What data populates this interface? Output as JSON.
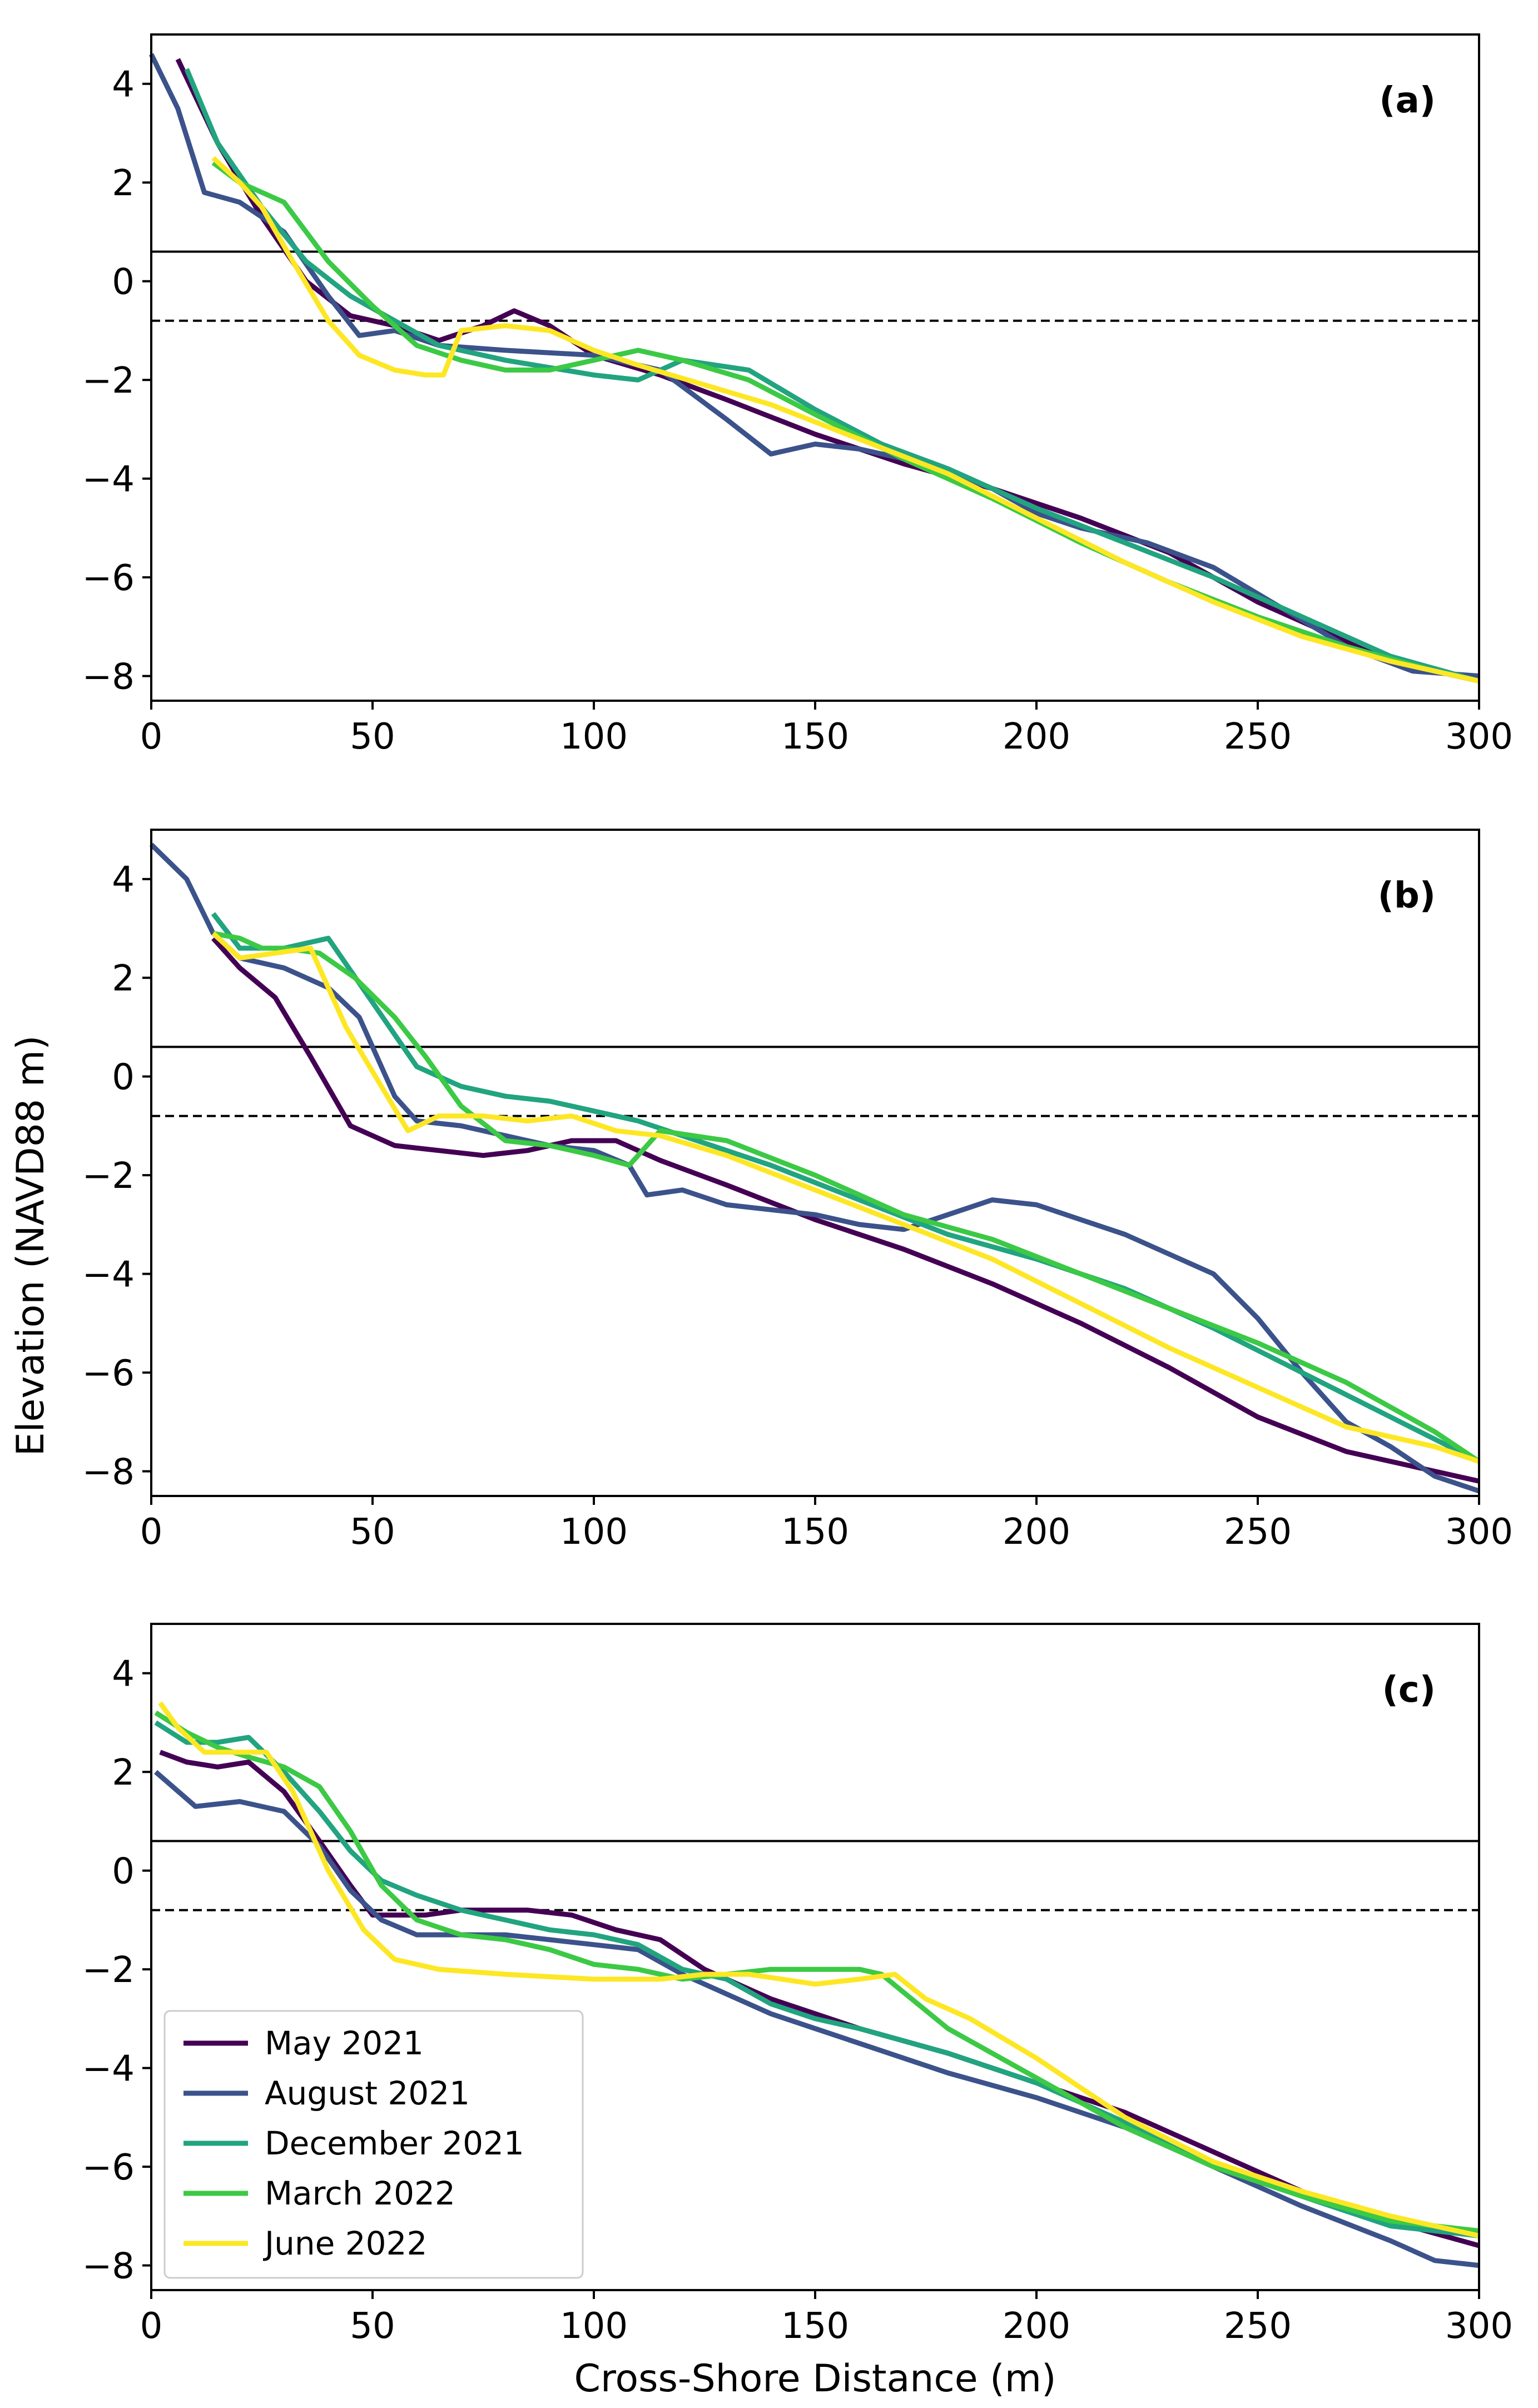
{
  "figure": {
    "ylabel": "Elevation (NAVD88 m)",
    "xlabel": "Cross-Shore Distance (m)"
  },
  "legend": {
    "placement": "lower-left of panel (c)",
    "entries": [
      {
        "label": "May 2021",
        "color": "#440154"
      },
      {
        "label": "August 2021",
        "color": "#3b528b"
      },
      {
        "label": "December 2021",
        "color": "#21a47f"
      },
      {
        "label": "March 2022",
        "color": "#3cc945"
      },
      {
        "label": "June 2022",
        "color": "#fde725"
      }
    ]
  },
  "chart_data": [
    {
      "type": "line",
      "panel_label": "(a)",
      "xlim": [
        0,
        300
      ],
      "ylim": [
        -8.5,
        5
      ],
      "xticks": [
        0,
        50,
        100,
        150,
        200,
        250,
        300
      ],
      "yticks": [
        4,
        2,
        0,
        -2,
        -4,
        -6,
        -8
      ],
      "reference_lines": [
        {
          "y": 0.6,
          "style": "solid"
        },
        {
          "y": -0.8,
          "style": "dashed"
        }
      ],
      "series": [
        {
          "name": "May 2021",
          "color": "#440154",
          "x": [
            6,
            15,
            25,
            35,
            45,
            55,
            65,
            75,
            82,
            90,
            100,
            115,
            130,
            150,
            170,
            190,
            210,
            230,
            250,
            270,
            290,
            300
          ],
          "y": [
            4.5,
            2.8,
            1.3,
            0.0,
            -0.7,
            -0.9,
            -1.2,
            -0.9,
            -0.6,
            -0.9,
            -1.5,
            -1.9,
            -2.4,
            -3.1,
            -3.7,
            -4.2,
            -4.8,
            -5.5,
            -6.5,
            -7.3,
            -7.9,
            -8.1
          ]
        },
        {
          "name": "August 2021",
          "color": "#3b528b",
          "x": [
            0,
            6,
            12,
            20,
            30,
            40,
            47,
            55,
            65,
            80,
            100,
            115,
            130,
            140,
            150,
            160,
            175,
            190,
            200,
            210,
            225,
            240,
            255,
            270,
            285,
            300
          ],
          "y": [
            4.6,
            3.5,
            1.8,
            1.6,
            1.0,
            -0.3,
            -1.1,
            -1.0,
            -1.3,
            -1.4,
            -1.5,
            -1.8,
            -2.8,
            -3.5,
            -3.3,
            -3.4,
            -3.7,
            -4.2,
            -4.7,
            -5.0,
            -5.3,
            -5.8,
            -6.6,
            -7.4,
            -7.9,
            -8.0
          ]
        },
        {
          "name": "December 2021",
          "color": "#21a47f",
          "x": [
            8,
            15,
            25,
            35,
            45,
            55,
            65,
            80,
            100,
            110,
            120,
            135,
            150,
            165,
            180,
            200,
            220,
            240,
            260,
            280,
            300
          ],
          "y": [
            4.3,
            2.8,
            1.5,
            0.4,
            -0.3,
            -0.8,
            -1.3,
            -1.6,
            -1.9,
            -2.0,
            -1.6,
            -1.8,
            -2.6,
            -3.3,
            -3.8,
            -4.6,
            -5.3,
            -6.0,
            -6.8,
            -7.6,
            -8.1
          ]
        },
        {
          "name": "March 2022",
          "color": "#3cc945",
          "x": [
            14,
            20,
            30,
            40,
            50,
            60,
            70,
            80,
            90,
            100,
            110,
            120,
            135,
            150,
            170,
            190,
            210,
            230,
            250,
            270,
            290,
            300
          ],
          "y": [
            2.4,
            2.0,
            1.6,
            0.4,
            -0.5,
            -1.3,
            -1.6,
            -1.8,
            -1.8,
            -1.6,
            -1.4,
            -1.6,
            -2.0,
            -2.7,
            -3.6,
            -4.4,
            -5.3,
            -6.1,
            -6.8,
            -7.4,
            -7.9,
            -8.1
          ]
        },
        {
          "name": "June 2022",
          "color": "#fde725",
          "x": [
            14,
            20,
            25,
            32,
            40,
            47,
            55,
            62,
            66,
            70,
            80,
            90,
            100,
            110,
            125,
            140,
            160,
            180,
            200,
            220,
            240,
            260,
            280,
            300
          ],
          "y": [
            2.5,
            2.0,
            1.5,
            0.4,
            -0.8,
            -1.5,
            -1.8,
            -1.9,
            -1.9,
            -1.0,
            -0.9,
            -1.0,
            -1.4,
            -1.7,
            -2.1,
            -2.5,
            -3.2,
            -3.9,
            -4.8,
            -5.7,
            -6.5,
            -7.2,
            -7.7,
            -8.1
          ]
        }
      ]
    },
    {
      "type": "line",
      "panel_label": "(b)",
      "xlim": [
        0,
        300
      ],
      "ylim": [
        -8.5,
        5
      ],
      "xticks": [
        0,
        50,
        100,
        150,
        200,
        250,
        300
      ],
      "yticks": [
        4,
        2,
        0,
        -2,
        -4,
        -6,
        -8
      ],
      "reference_lines": [
        {
          "y": 0.6,
          "style": "solid"
        },
        {
          "y": -0.8,
          "style": "dashed"
        }
      ],
      "series": [
        {
          "name": "May 2021",
          "color": "#440154",
          "x": [
            14,
            20,
            28,
            36,
            45,
            55,
            65,
            75,
            85,
            95,
            105,
            115,
            130,
            150,
            170,
            190,
            210,
            230,
            250,
            270,
            290,
            300
          ],
          "y": [
            2.8,
            2.2,
            1.6,
            0.4,
            -1.0,
            -1.4,
            -1.5,
            -1.6,
            -1.5,
            -1.3,
            -1.3,
            -1.7,
            -2.2,
            -2.9,
            -3.5,
            -4.2,
            -5.0,
            -5.9,
            -6.9,
            -7.6,
            -8.0,
            -8.2
          ]
        },
        {
          "name": "August 2021",
          "color": "#3b528b",
          "x": [
            0,
            8,
            14,
            20,
            30,
            40,
            47,
            55,
            60,
            70,
            80,
            90,
            100,
            108,
            112,
            120,
            130,
            140,
            150,
            160,
            170,
            180,
            190,
            200,
            210,
            220,
            230,
            240,
            250,
            260,
            270,
            280,
            290,
            300
          ],
          "y": [
            4.7,
            4.0,
            2.9,
            2.4,
            2.2,
            1.8,
            1.2,
            -0.4,
            -0.9,
            -1.0,
            -1.2,
            -1.4,
            -1.5,
            -1.8,
            -2.4,
            -2.3,
            -2.6,
            -2.7,
            -2.8,
            -3.0,
            -3.1,
            -2.8,
            -2.5,
            -2.6,
            -2.9,
            -3.2,
            -3.6,
            -4.0,
            -4.9,
            -6.0,
            -7.0,
            -7.5,
            -8.1,
            -8.4
          ]
        },
        {
          "name": "December 2021",
          "color": "#21a47f",
          "x": [
            14,
            20,
            30,
            40,
            50,
            60,
            70,
            80,
            90,
            100,
            110,
            120,
            140,
            160,
            180,
            200,
            220,
            240,
            260,
            280,
            300
          ],
          "y": [
            3.3,
            2.6,
            2.6,
            2.8,
            1.5,
            0.2,
            -0.2,
            -0.4,
            -0.5,
            -0.7,
            -0.9,
            -1.2,
            -1.8,
            -2.5,
            -3.2,
            -3.7,
            -4.3,
            -5.1,
            -6.0,
            -6.9,
            -7.8
          ]
        },
        {
          "name": "March 2022",
          "color": "#3cc945",
          "x": [
            14,
            20,
            25,
            30,
            38,
            46,
            55,
            62,
            70,
            80,
            90,
            100,
            108,
            115,
            130,
            150,
            170,
            190,
            210,
            230,
            250,
            270,
            290,
            300
          ],
          "y": [
            2.9,
            2.8,
            2.6,
            2.6,
            2.5,
            2.0,
            1.2,
            0.4,
            -0.6,
            -1.3,
            -1.4,
            -1.6,
            -1.8,
            -1.1,
            -1.3,
            -2.0,
            -2.8,
            -3.3,
            -4.0,
            -4.7,
            -5.4,
            -6.2,
            -7.2,
            -7.8
          ]
        },
        {
          "name": "June 2022",
          "color": "#fde725",
          "x": [
            14,
            20,
            28,
            36,
            44,
            52,
            58,
            65,
            75,
            85,
            95,
            105,
            115,
            130,
            150,
            170,
            190,
            210,
            230,
            250,
            270,
            290,
            300
          ],
          "y": [
            2.9,
            2.4,
            2.5,
            2.6,
            1.0,
            -0.2,
            -1.1,
            -0.8,
            -0.8,
            -0.9,
            -0.8,
            -1.1,
            -1.2,
            -1.6,
            -2.3,
            -3.0,
            -3.7,
            -4.6,
            -5.5,
            -6.3,
            -7.1,
            -7.5,
            -7.8
          ]
        }
      ]
    },
    {
      "type": "line",
      "panel_label": "(c)",
      "xlim": [
        0,
        300
      ],
      "ylim": [
        -8.5,
        5
      ],
      "xticks": [
        0,
        50,
        100,
        150,
        200,
        250,
        300
      ],
      "yticks": [
        4,
        2,
        0,
        -2,
        -4,
        -6,
        -8
      ],
      "reference_lines": [
        {
          "y": 0.6,
          "style": "solid"
        },
        {
          "y": -0.8,
          "style": "dashed"
        }
      ],
      "series": [
        {
          "name": "May 2021",
          "color": "#440154",
          "x": [
            2,
            8,
            15,
            22,
            30,
            38,
            45,
            50,
            55,
            62,
            70,
            76,
            85,
            95,
            105,
            115,
            125,
            140,
            160,
            180,
            200,
            220,
            240,
            260,
            280,
            300
          ],
          "y": [
            2.4,
            2.2,
            2.1,
            2.2,
            1.6,
            0.6,
            -0.3,
            -0.9,
            -0.9,
            -0.9,
            -0.8,
            -0.8,
            -0.8,
            -0.9,
            -1.2,
            -1.4,
            -2.0,
            -2.6,
            -3.2,
            -3.7,
            -4.3,
            -4.9,
            -5.7,
            -6.5,
            -7.1,
            -7.6
          ]
        },
        {
          "name": "August 2021",
          "color": "#3b528b",
          "x": [
            1,
            10,
            20,
            30,
            38,
            45,
            52,
            60,
            70,
            80,
            90,
            100,
            110,
            120,
            130,
            140,
            150,
            160,
            180,
            200,
            220,
            240,
            260,
            280,
            290,
            300
          ],
          "y": [
            2.0,
            1.3,
            1.4,
            1.2,
            0.5,
            -0.4,
            -1.0,
            -1.3,
            -1.3,
            -1.3,
            -1.4,
            -1.5,
            -1.6,
            -2.1,
            -2.5,
            -2.9,
            -3.2,
            -3.5,
            -4.1,
            -4.6,
            -5.2,
            -6.0,
            -6.8,
            -7.5,
            -7.9,
            -8.0
          ]
        },
        {
          "name": "December 2021",
          "color": "#21a47f",
          "x": [
            1,
            8,
            15,
            22,
            30,
            38,
            45,
            52,
            60,
            70,
            80,
            90,
            100,
            110,
            120,
            130,
            140,
            150,
            160,
            180,
            200,
            220,
            240,
            260,
            280,
            300
          ],
          "y": [
            3.0,
            2.6,
            2.6,
            2.7,
            2.0,
            1.2,
            0.4,
            -0.2,
            -0.5,
            -0.8,
            -1.0,
            -1.2,
            -1.3,
            -1.5,
            -2.0,
            -2.2,
            -2.7,
            -3.0,
            -3.2,
            -3.7,
            -4.3,
            -5.1,
            -5.9,
            -6.6,
            -7.2,
            -7.4
          ]
        },
        {
          "name": "March 2022",
          "color": "#3cc945",
          "x": [
            1,
            8,
            15,
            22,
            30,
            38,
            45,
            52,
            60,
            70,
            80,
            90,
            100,
            110,
            120,
            130,
            140,
            150,
            160,
            165,
            180,
            200,
            220,
            240,
            260,
            280,
            300
          ],
          "y": [
            3.2,
            2.8,
            2.5,
            2.3,
            2.1,
            1.7,
            0.8,
            -0.3,
            -1.0,
            -1.3,
            -1.4,
            -1.6,
            -1.9,
            -2.0,
            -2.2,
            -2.1,
            -2.0,
            -2.0,
            -2.0,
            -2.1,
            -3.2,
            -4.2,
            -5.2,
            -6.0,
            -6.6,
            -7.1,
            -7.3
          ]
        },
        {
          "name": "June 2022",
          "color": "#fde725",
          "x": [
            2,
            6,
            12,
            20,
            26,
            32,
            40,
            48,
            55,
            65,
            80,
            100,
            115,
            125,
            135,
            150,
            160,
            168,
            175,
            185,
            200,
            220,
            240,
            260,
            280,
            300
          ],
          "y": [
            3.4,
            2.9,
            2.4,
            2.4,
            2.4,
            1.6,
            0.0,
            -1.2,
            -1.8,
            -2.0,
            -2.1,
            -2.2,
            -2.2,
            -2.1,
            -2.1,
            -2.3,
            -2.2,
            -2.1,
            -2.6,
            -3.0,
            -3.8,
            -5.0,
            -5.9,
            -6.5,
            -7.0,
            -7.4
          ]
        }
      ]
    }
  ]
}
